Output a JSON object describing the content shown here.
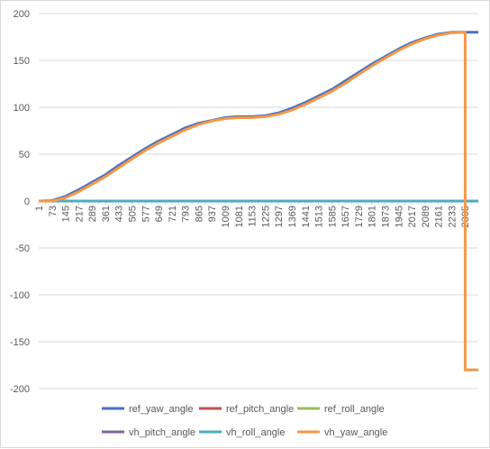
{
  "chart_data": {
    "type": "line",
    "title": "",
    "xlabel": "",
    "ylabel": "",
    "ylim": [
      -200,
      200
    ],
    "yticks": [
      200,
      150,
      100,
      50,
      0,
      -50,
      -100,
      -150,
      -200
    ],
    "xlim": [
      1,
      2377
    ],
    "xticks": [
      1,
      73,
      145,
      217,
      289,
      361,
      433,
      505,
      577,
      649,
      721,
      793,
      865,
      937,
      1009,
      1081,
      1153,
      1225,
      1297,
      1369,
      1441,
      1513,
      1585,
      1657,
      1729,
      1801,
      1873,
      1945,
      2017,
      2089,
      2161,
      2233,
      2305
    ],
    "grid": "horizontal",
    "legend_position": "bottom",
    "series": [
      {
        "name": "ref_yaw_angle",
        "color": "#4472c4",
        "x": [
          1,
          73,
          145,
          217,
          289,
          361,
          433,
          505,
          577,
          649,
          721,
          793,
          865,
          937,
          1009,
          1081,
          1153,
          1225,
          1297,
          1369,
          1441,
          1513,
          1585,
          1657,
          1729,
          1801,
          1873,
          1945,
          2017,
          2089,
          2161,
          2233,
          2305,
          2377
        ],
        "y": [
          0,
          0.5,
          5,
          12,
          20,
          28,
          38,
          47,
          56,
          64,
          71,
          78,
          83,
          86,
          89,
          90,
          90,
          91,
          94,
          99,
          105,
          112,
          119,
          128,
          137,
          146,
          154,
          162,
          169,
          174,
          178,
          180,
          180,
          180
        ]
      },
      {
        "name": "ref_pitch_angle",
        "color": "#c0504d",
        "x": [
          1,
          2377
        ],
        "y": [
          0,
          0
        ]
      },
      {
        "name": "ref_roll_angle",
        "color": "#9bbb59",
        "x": [
          1,
          2377
        ],
        "y": [
          0,
          0
        ]
      },
      {
        "name": "vh_pitch_angle",
        "color": "#8064a2",
        "x": [
          1,
          2377
        ],
        "y": [
          0,
          0
        ]
      },
      {
        "name": "vh_roll_angle",
        "color": "#4bacc6",
        "x": [
          1,
          2377
        ],
        "y": [
          0,
          0
        ]
      },
      {
        "name": "vh_yaw_angle",
        "color": "#f79646",
        "x": [
          1,
          73,
          145,
          217,
          289,
          361,
          433,
          505,
          577,
          649,
          721,
          793,
          865,
          937,
          1009,
          1081,
          1153,
          1225,
          1297,
          1369,
          1441,
          1513,
          1585,
          1657,
          1729,
          1801,
          1873,
          1945,
          2017,
          2089,
          2161,
          2233,
          2305,
          2306,
          2306,
          2377
        ],
        "y": [
          0,
          0,
          3.5,
          10,
          18,
          26,
          35.5,
          45,
          54,
          62,
          69,
          76,
          81.5,
          85.5,
          88,
          89,
          89,
          90,
          92.5,
          97,
          103,
          110,
          117,
          125.5,
          135,
          144,
          152.5,
          160.5,
          167.5,
          173,
          177,
          179.5,
          180,
          180,
          -180,
          -180
        ]
      }
    ]
  }
}
